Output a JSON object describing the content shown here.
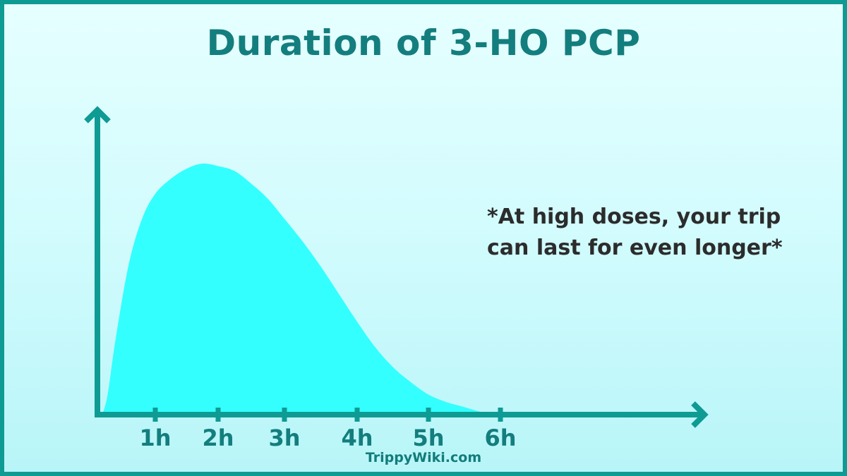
{
  "title": "Duration of 3-HO PCP",
  "note": "*At high doses, your trip can last for even longer*",
  "credit": "TrippyWiki.com",
  "colors": {
    "frame": "#0e9b93",
    "title": "#137e7d",
    "axis": "#0e9b93",
    "fill": "#33ffff",
    "note_text": "#2c2c2c"
  },
  "chart_data": {
    "type": "area",
    "title": "Duration of 3-HO PCP",
    "xlabel": "",
    "ylabel": "",
    "x_unit": "h",
    "xlim": [
      0,
      8.5
    ],
    "ylim": [
      0,
      1.0
    ],
    "grid": false,
    "tick_labels": [
      "1h",
      "2h",
      "3h",
      "4h",
      "5h",
      "6h"
    ],
    "tick_values": [
      1,
      2,
      3,
      4,
      5,
      6
    ],
    "x": [
      0,
      0.1,
      0.25,
      0.5,
      0.75,
      1,
      1.25,
      1.5,
      1.75,
      2,
      2.25,
      2.5,
      2.75,
      3,
      3.25,
      3.5,
      3.75,
      4,
      4.25,
      4.5,
      4.75,
      5,
      5.25,
      5.5,
      5.75,
      6
    ],
    "y": [
      0,
      0.08,
      0.3,
      0.6,
      0.78,
      0.88,
      0.94,
      0.98,
      1.0,
      0.99,
      0.97,
      0.92,
      0.86,
      0.78,
      0.69,
      0.59,
      0.48,
      0.37,
      0.27,
      0.19,
      0.13,
      0.08,
      0.05,
      0.03,
      0.01,
      0
    ]
  }
}
